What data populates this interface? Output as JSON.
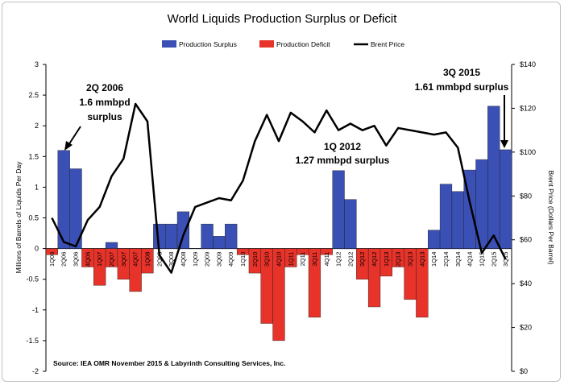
{
  "chart_data": {
    "type": "bar",
    "title": "World Liquids Production Surplus or Deficit",
    "ylabel": "Millions of Barrels of Liquids Per Day",
    "y2label": "Brent Price (Dollars Per Barrel)",
    "ylim": [
      -2,
      3
    ],
    "yticks": [
      "-2",
      "-1.5",
      "-1",
      "-0.5",
      "0",
      "0.5",
      "1",
      "1.5",
      "2",
      "2.5",
      "3"
    ],
    "y2lim": [
      0,
      140
    ],
    "y2ticks": [
      "$0",
      "$20",
      "$40",
      "$60",
      "$80",
      "$100",
      "$120",
      "$140"
    ],
    "legend_position": "top",
    "grid": false,
    "categories": [
      "1Q06",
      "2Q06",
      "3Q06",
      "4Q06",
      "1Q07",
      "2Q07",
      "3Q07",
      "4Q07",
      "1Q08",
      "2Q08",
      "3Q08",
      "4Q08",
      "1Q09",
      "2Q09",
      "3Q09",
      "4Q09",
      "1Q10",
      "2Q10",
      "3Q10",
      "4Q10",
      "1Q11",
      "2Q11",
      "3Q11",
      "4Q11",
      "1Q12",
      "2Q12",
      "3Q12",
      "4Q12",
      "1Q13",
      "2Q13",
      "3Q13",
      "4Q13",
      "1Q14",
      "2Q14",
      "3Q14",
      "4Q14",
      "1Q15",
      "2Q15",
      "3Q15"
    ],
    "series": [
      {
        "name": "Production Surplus",
        "color": "#3a50b4",
        "values": [
          0,
          1.6,
          1.3,
          0,
          0,
          0.1,
          0,
          0,
          0,
          0.4,
          0.4,
          0.6,
          0,
          0.4,
          0.2,
          0.4,
          0,
          0,
          0,
          0,
          0,
          0,
          0,
          0,
          1.27,
          0.8,
          0,
          0,
          0,
          0,
          0,
          0,
          0.3,
          1.05,
          0.93,
          1.28,
          1.45,
          2.32,
          1.61
        ]
      },
      {
        "name": "Production Deficit",
        "color": "#e8332a",
        "values": [
          -0.1,
          0,
          0,
          -0.3,
          -0.6,
          -0.3,
          -0.5,
          -0.7,
          -0.4,
          0,
          0,
          0,
          0,
          0,
          0,
          0,
          -0.1,
          -0.4,
          -1.22,
          -1.5,
          -0.3,
          -0.1,
          -1.12,
          -0.1,
          0,
          0,
          -0.5,
          -0.95,
          -0.45,
          -0.3,
          -0.83,
          -1.12,
          0,
          0,
          0,
          0,
          0,
          0,
          0
        ]
      },
      {
        "name": "Brent Price",
        "color": "#000000",
        "axis": "y2",
        "values": [
          70,
          59,
          57,
          69,
          75,
          89,
          97,
          122,
          114,
          53,
          45,
          62,
          75,
          77,
          79,
          78,
          87,
          105,
          117,
          105,
          118,
          114,
          109,
          119,
          110,
          113,
          110,
          112,
          103,
          111,
          110,
          109,
          108,
          109,
          102,
          77,
          54,
          62,
          51
        ]
      }
    ],
    "annotations": [
      {
        "id": "a2006",
        "lines": [
          "2Q 2006",
          "1.6 mmbpd",
          "surplus"
        ]
      },
      {
        "id": "a2012",
        "lines": [
          "1Q 2012",
          "1.27 mmbpd surplus"
        ]
      },
      {
        "id": "a2015",
        "lines": [
          "3Q 2015",
          "1.61 mmbpd surplus"
        ]
      }
    ],
    "source": "Source:  IEA OMR November 2015 & Labyrinth Consulting Services, Inc."
  }
}
